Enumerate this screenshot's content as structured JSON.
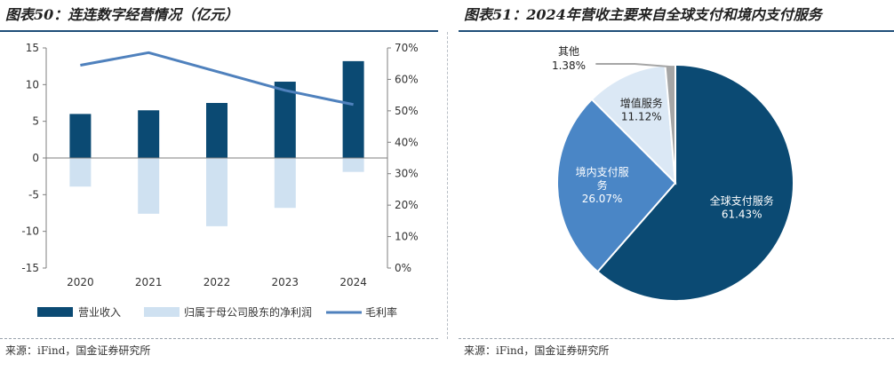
{
  "left": {
    "title": "图表50：连连数字经营情况（亿元）",
    "source": "来源：iFind，国金证券研究所"
  },
  "right": {
    "title": "图表51：2024年营收主要来自全球支付和境内支付服务",
    "source": "来源：iFind，国金证券研究所"
  },
  "colors": {
    "revenue": "#0b4a73",
    "net_profit": "#cfe1f1",
    "gross_margin": "#4f81bd",
    "rule": "#1f4e79",
    "pie_global": "#0b4a73",
    "pie_domestic": "#4a86c6",
    "pie_value_added": "#dbe8f5",
    "pie_other": "#a6a6a6"
  },
  "chart_data": [
    {
      "type": "bar",
      "categories": [
        "2020",
        "2021",
        "2022",
        "2023",
        "2024"
      ],
      "series": [
        {
          "name": "营业收入",
          "kind": "bar",
          "axis": "left",
          "values": [
            6.0,
            6.5,
            7.5,
            10.4,
            13.2
          ]
        },
        {
          "name": "归属于母公司股东的净利润",
          "kind": "bar",
          "axis": "left",
          "values": [
            -3.9,
            -7.6,
            -9.3,
            -6.8,
            -1.9
          ]
        },
        {
          "name": "毛利率",
          "kind": "line",
          "axis": "right",
          "values": [
            64.5,
            68.5,
            62.5,
            56.5,
            52.0
          ]
        }
      ],
      "ylim": [
        -15,
        15
      ],
      "yticks": [
        -15,
        -10,
        -5,
        0,
        5,
        10,
        15
      ],
      "ylim_right": [
        0,
        70
      ],
      "yticks_right": [
        "0%",
        "10%",
        "20%",
        "30%",
        "40%",
        "50%",
        "60%",
        "70%"
      ],
      "xlabel": "",
      "ylabel": "",
      "legend": "bottom"
    },
    {
      "type": "pie",
      "categories": [
        "全球支付服务",
        "境内支付服务",
        "增值服务",
        "其他"
      ],
      "values": [
        61.43,
        26.07,
        11.12,
        1.38
      ],
      "labels": [
        "61.43%",
        "26.07%",
        "11.12%",
        "1.38%"
      ]
    }
  ]
}
